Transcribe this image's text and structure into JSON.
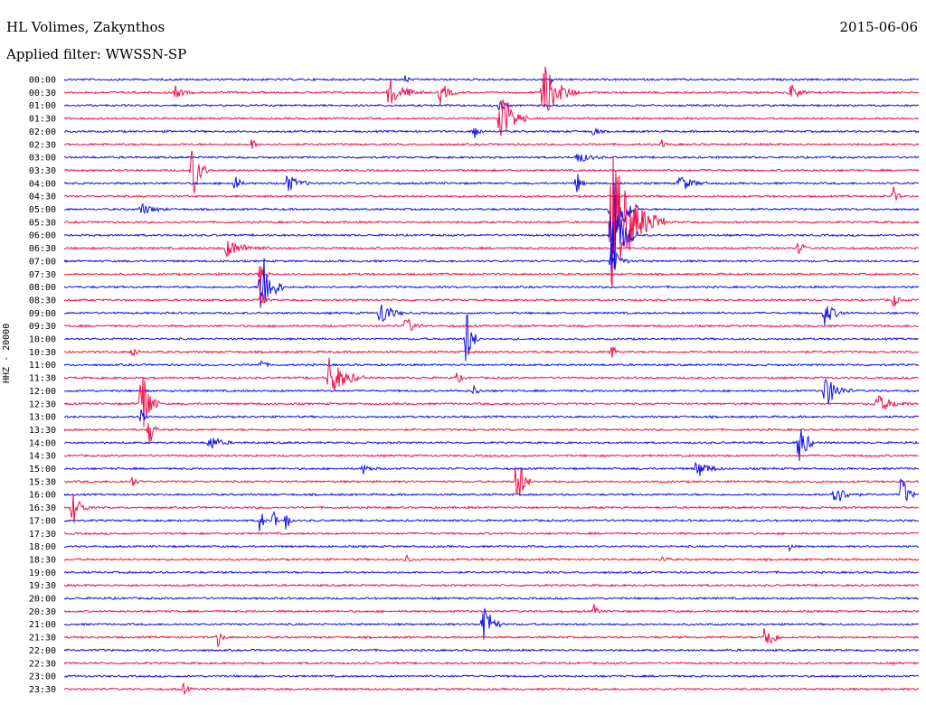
{
  "header": {
    "station": "HL Volimes, Zakynthos",
    "date": "2015-06-06",
    "filter": "Applied filter: WWSSN-SP"
  },
  "side_label": "HHZ - 20000",
  "colors": {
    "blue": "#1010e8",
    "red": "#f0104a"
  },
  "chart_data": {
    "type": "line",
    "title": "HL Volimes, Zakynthos",
    "xlabel": "",
    "ylabel": "HHZ - 20000",
    "series_colors_cycle": [
      "blue",
      "red"
    ],
    "rows": [
      {
        "label": "00:00",
        "events": [
          [
            0.4,
            0.5,
            6
          ],
          [
            0.57,
            0.5,
            6
          ]
        ]
      },
      {
        "label": "00:30",
        "events": [
          [
            0.38,
            1.2,
            40
          ],
          [
            0.44,
            1.0,
            20
          ],
          [
            0.56,
            2.5,
            40
          ],
          [
            0.13,
            0.5,
            20
          ],
          [
            0.85,
            0.8,
            20
          ]
        ]
      },
      {
        "label": "01:00",
        "events": [
          [
            0.51,
            0.8,
            10
          ]
        ]
      },
      {
        "label": "01:30",
        "events": [
          [
            0.51,
            3.0,
            30
          ]
        ]
      },
      {
        "label": "02:00",
        "events": [
          [
            0.48,
            0.8,
            10
          ],
          [
            0.62,
            0.5,
            10
          ]
        ]
      },
      {
        "label": "02:30",
        "events": [
          [
            0.22,
            0.5,
            8
          ],
          [
            0.7,
            0.4,
            8
          ]
        ]
      },
      {
        "label": "03:00",
        "events": [
          [
            0.6,
            0.5,
            30
          ]
        ]
      },
      {
        "label": "03:30",
        "events": [
          [
            0.15,
            2.5,
            20
          ]
        ]
      },
      {
        "label": "04:00",
        "events": [
          [
            0.2,
            1.0,
            10
          ],
          [
            0.26,
            0.8,
            30
          ],
          [
            0.6,
            1.0,
            10
          ],
          [
            0.72,
            0.8,
            30
          ]
        ]
      },
      {
        "label": "04:30",
        "events": [
          [
            0.97,
            0.8,
            10
          ]
        ]
      },
      {
        "label": "05:00",
        "events": [
          [
            0.64,
            5.0,
            30
          ],
          [
            0.09,
            0.5,
            30
          ]
        ]
      },
      {
        "label": "05:30",
        "events": [
          [
            0.64,
            6.0,
            60
          ]
        ]
      },
      {
        "label": "06:00",
        "events": [
          [
            0.64,
            4.0,
            30
          ]
        ]
      },
      {
        "label": "06:30",
        "events": [
          [
            0.19,
            0.7,
            50
          ],
          [
            0.86,
            0.8,
            10
          ]
        ]
      },
      {
        "label": "07:00",
        "events": [
          [
            0.64,
            1.5,
            20
          ]
        ]
      },
      {
        "label": "07:30",
        "events": [
          [
            0.23,
            1.5,
            10
          ]
        ]
      },
      {
        "label": "08:00",
        "events": [
          [
            0.23,
            4.0,
            25
          ]
        ]
      },
      {
        "label": "08:30",
        "events": [
          [
            0.23,
            1.0,
            10
          ],
          [
            0.97,
            0.8,
            10
          ]
        ]
      },
      {
        "label": "09:00",
        "events": [
          [
            0.37,
            1.3,
            25
          ],
          [
            0.89,
            1.0,
            25
          ]
        ]
      },
      {
        "label": "09:30",
        "events": [
          [
            0.4,
            0.8,
            20
          ]
        ]
      },
      {
        "label": "10:00",
        "events": [
          [
            0.47,
            3.0,
            15
          ]
        ]
      },
      {
        "label": "10:30",
        "events": [
          [
            0.64,
            0.8,
            10
          ],
          [
            0.08,
            0.5,
            10
          ]
        ]
      },
      {
        "label": "11:00",
        "events": [
          [
            0.23,
            0.5,
            10
          ]
        ]
      },
      {
        "label": "11:30",
        "events": [
          [
            0.31,
            1.8,
            40
          ],
          [
            0.46,
            0.5,
            10
          ]
        ]
      },
      {
        "label": "12:00",
        "events": [
          [
            0.89,
            1.5,
            30
          ],
          [
            0.48,
            0.5,
            10
          ]
        ]
      },
      {
        "label": "12:30",
        "events": [
          [
            0.09,
            4.0,
            20
          ],
          [
            0.95,
            0.8,
            40
          ]
        ]
      },
      {
        "label": "13:00",
        "events": [
          [
            0.09,
            1.0,
            10
          ]
        ]
      },
      {
        "label": "13:30",
        "events": [
          [
            0.1,
            1.5,
            10
          ]
        ]
      },
      {
        "label": "14:00",
        "events": [
          [
            0.17,
            0.7,
            25
          ],
          [
            0.86,
            2.0,
            20
          ]
        ]
      },
      {
        "label": "14:30",
        "events": []
      },
      {
        "label": "15:00",
        "events": [
          [
            0.74,
            0.8,
            30
          ],
          [
            0.35,
            0.4,
            20
          ]
        ]
      },
      {
        "label": "15:30",
        "events": [
          [
            0.53,
            3.0,
            15
          ],
          [
            0.08,
            0.5,
            10
          ]
        ]
      },
      {
        "label": "16:00",
        "events": [
          [
            0.9,
            1.0,
            30
          ],
          [
            0.98,
            1.8,
            15
          ]
        ]
      },
      {
        "label": "16:30",
        "events": [
          [
            0.01,
            1.5,
            20
          ]
        ]
      },
      {
        "label": "17:00",
        "events": [
          [
            0.23,
            1.5,
            6
          ],
          [
            0.245,
            1.5,
            6
          ],
          [
            0.26,
            1.4,
            6
          ]
        ]
      },
      {
        "label": "17:30",
        "events": []
      },
      {
        "label": "18:00",
        "events": [
          [
            0.85,
            0.5,
            6
          ]
        ]
      },
      {
        "label": "18:30",
        "events": [
          [
            0.4,
            0.5,
            10
          ],
          [
            0.7,
            0.4,
            10
          ]
        ]
      },
      {
        "label": "19:00",
        "events": []
      },
      {
        "label": "19:30",
        "events": []
      },
      {
        "label": "20:00",
        "events": []
      },
      {
        "label": "20:30",
        "events": [
          [
            0.62,
            0.5,
            10
          ]
        ]
      },
      {
        "label": "21:00",
        "events": [
          [
            0.49,
            2.5,
            20
          ]
        ]
      },
      {
        "label": "21:30",
        "events": [
          [
            0.18,
            0.8,
            10
          ],
          [
            0.82,
            1.5,
            20
          ]
        ]
      },
      {
        "label": "22:00",
        "events": []
      },
      {
        "label": "22:30",
        "events": []
      },
      {
        "label": "23:00",
        "events": []
      },
      {
        "label": "23:30",
        "events": [
          [
            0.14,
            0.5,
            10
          ]
        ]
      }
    ]
  }
}
